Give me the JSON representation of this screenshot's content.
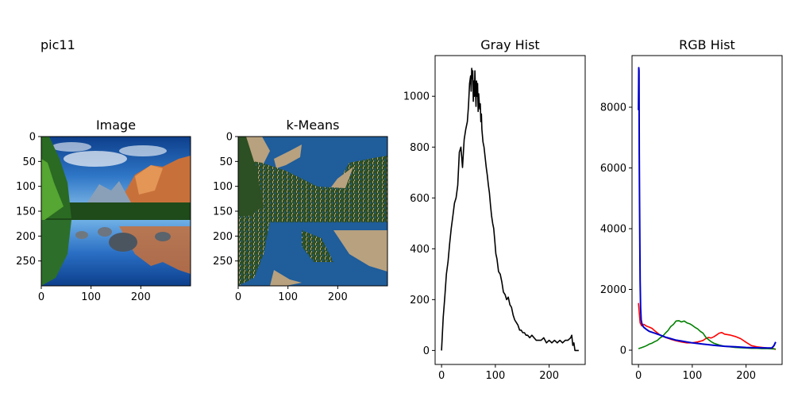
{
  "figure": {
    "suptitle": "pic11"
  },
  "chart_data": [
    {
      "type": "image",
      "title": "Image",
      "description": "photograph of mountain lake with pine forest, reflection, rocks",
      "xlim": [
        0,
        300
      ],
      "ylim": [
        300,
        0
      ],
      "xticks": [
        0,
        100,
        200
      ],
      "yticks": [
        0,
        50,
        100,
        150,
        200,
        250
      ]
    },
    {
      "type": "image",
      "title": "k-Means",
      "description": "k-means color-quantized version of the photograph (blue, dark green, tan)",
      "palette": [
        "#1f5d9b",
        "#2c4f23",
        "#b8a17e"
      ],
      "xlim": [
        0,
        300
      ],
      "ylim": [
        300,
        0
      ],
      "xticks": [
        0,
        100,
        200
      ],
      "yticks": [
        0,
        50,
        100,
        150,
        200,
        250
      ]
    },
    {
      "type": "line",
      "title": "Gray Hist",
      "xlim": [
        -12,
        267
      ],
      "ylim": [
        -55,
        1160
      ],
      "xticks": [
        0,
        100,
        200
      ],
      "yticks": [
        0,
        200,
        400,
        600,
        800,
        1000
      ],
      "series": [
        {
          "color": "#000000",
          "x": [
            0,
            3,
            6,
            9,
            12,
            15,
            18,
            21,
            24,
            27,
            30,
            33,
            36,
            39,
            42,
            45,
            48,
            50,
            52,
            54,
            55,
            56,
            57,
            58,
            59,
            60,
            61,
            62,
            63,
            64,
            65,
            66,
            67,
            68,
            69,
            70,
            71,
            72,
            73,
            74,
            75,
            77,
            79,
            81,
            83,
            85,
            87,
            89,
            91,
            93,
            95,
            97,
            99,
            101,
            103,
            106,
            109,
            112,
            115,
            118,
            121,
            124,
            127,
            130,
            133,
            136,
            139,
            142,
            145,
            148,
            151,
            154,
            157,
            160,
            164,
            168,
            172,
            176,
            180,
            185,
            190,
            195,
            200,
            205,
            210,
            215,
            220,
            225,
            230,
            235,
            240,
            242,
            244,
            246,
            248,
            250,
            253,
            255
          ],
          "y": [
            0,
            130,
            210,
            300,
            350,
            420,
            480,
            530,
            580,
            600,
            650,
            780,
            800,
            720,
            830,
            870,
            900,
            960,
            1050,
            1080,
            1020,
            1110,
            1070,
            1100,
            980,
            1060,
            1000,
            1100,
            1030,
            960,
            1060,
            1000,
            1050,
            940,
            1010,
            980,
            950,
            970,
            900,
            930,
            870,
            820,
            800,
            760,
            720,
            690,
            650,
            620,
            570,
            530,
            500,
            480,
            430,
            380,
            360,
            310,
            300,
            270,
            230,
            220,
            200,
            210,
            180,
            170,
            140,
            120,
            110,
            100,
            80,
            80,
            70,
            70,
            60,
            60,
            50,
            60,
            50,
            40,
            40,
            40,
            50,
            30,
            40,
            30,
            40,
            30,
            40,
            30,
            40,
            40,
            50,
            60,
            20,
            30,
            0,
            0,
            0,
            0
          ]
        }
      ]
    },
    {
      "type": "line",
      "title": "RGB Hist",
      "xlim": [
        -12,
        267
      ],
      "ylim": [
        -470,
        9700
      ],
      "xticks": [
        0,
        100,
        200
      ],
      "yticks": [
        0,
        2000,
        4000,
        6000,
        8000
      ],
      "series": [
        {
          "color": "#ff0000",
          "x": [
            0,
            3,
            6,
            10,
            15,
            20,
            25,
            30,
            40,
            50,
            60,
            70,
            80,
            90,
            100,
            110,
            120,
            125,
            130,
            135,
            140,
            145,
            150,
            155,
            160,
            170,
            180,
            190,
            200,
            210,
            220,
            230,
            240,
            250,
            255
          ],
          "y": [
            1550,
            900,
            800,
            850,
            790,
            760,
            720,
            640,
            500,
            420,
            360,
            310,
            270,
            240,
            240,
            270,
            320,
            380,
            420,
            400,
            440,
            500,
            560,
            580,
            530,
            500,
            450,
            380,
            260,
            150,
            110,
            90,
            70,
            60,
            20
          ]
        },
        {
          "color": "#008000",
          "x": [
            0,
            5,
            10,
            15,
            20,
            25,
            30,
            35,
            40,
            45,
            50,
            55,
            60,
            65,
            70,
            75,
            80,
            85,
            90,
            95,
            100,
            105,
            110,
            115,
            120,
            125,
            130,
            135,
            140,
            150,
            160,
            170,
            180,
            190,
            200,
            210,
            220,
            230,
            240,
            250,
            255
          ],
          "y": [
            50,
            80,
            110,
            150,
            200,
            230,
            280,
            320,
            400,
            460,
            560,
            650,
            780,
            850,
            960,
            970,
            930,
            960,
            900,
            870,
            820,
            750,
            700,
            620,
            560,
            430,
            350,
            280,
            230,
            170,
            130,
            110,
            90,
            80,
            70,
            60,
            60,
            50,
            50,
            40,
            40
          ]
        },
        {
          "color": "#0000cc",
          "x": [
            0,
            0.5,
            1,
            1.5,
            2,
            3,
            4,
            5,
            6,
            8,
            10,
            15,
            20,
            30,
            40,
            50,
            60,
            70,
            80,
            90,
            100,
            120,
            140,
            160,
            180,
            200,
            220,
            240,
            248,
            252,
            255
          ],
          "y": [
            7900,
            9300,
            9200,
            6500,
            4800,
            2300,
            1400,
            1000,
            900,
            800,
            750,
            680,
            620,
            560,
            500,
            430,
            380,
            330,
            300,
            270,
            240,
            200,
            160,
            130,
            110,
            90,
            80,
            70,
            70,
            150,
            270
          ]
        }
      ]
    }
  ]
}
